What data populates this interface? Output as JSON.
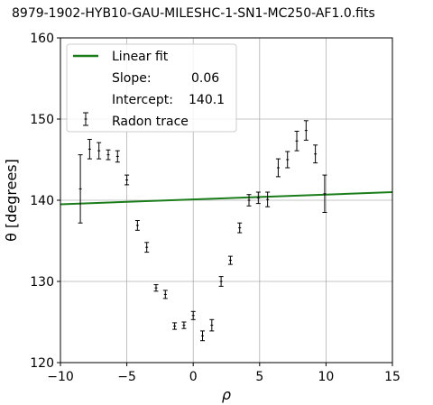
{
  "chart_data": {
    "type": "scatter",
    "title": "8979-1902-HYB10-GAU-MILESHC-1-SN1-MC250-AF1.0.fits",
    "xlabel": "ρ",
    "ylabel": "θ [degrees]",
    "xlim": [
      -10,
      15
    ],
    "ylim": [
      120,
      160
    ],
    "xticks": [
      -10,
      -5,
      0,
      5,
      10,
      15
    ],
    "yticks": [
      120,
      130,
      140,
      150,
      160
    ],
    "xtick_labels": [
      "−10",
      "−5",
      "0",
      "5",
      "10",
      "15"
    ],
    "ytick_labels": [
      "120",
      "130",
      "140",
      "150",
      "160"
    ],
    "grid": true,
    "legend_position": "top-left",
    "fit": {
      "name": "Linear fit",
      "slope": 0.06,
      "intercept": 140.1,
      "color": "#1a7d1a",
      "slope_label": "Slope:",
      "slope_text": "0.06",
      "intercept_label": "Intercept:",
      "intercept_text": "140.1"
    },
    "series": [
      {
        "name": "Radon trace",
        "color": "#000000",
        "x": [
          -8.5,
          -7.8,
          -7.1,
          -6.4,
          -5.7,
          -5.0,
          -4.2,
          -3.5,
          -2.8,
          -2.1,
          -1.4,
          -0.7,
          0.0,
          0.7,
          1.4,
          2.1,
          2.8,
          3.5,
          4.2,
          4.9,
          5.6,
          6.4,
          7.1,
          7.8,
          8.5,
          9.2,
          9.9
        ],
        "y": [
          141.4,
          146.3,
          146.1,
          145.6,
          145.4,
          142.5,
          136.9,
          134.2,
          129.2,
          128.4,
          124.5,
          124.6,
          125.8,
          123.3,
          124.6,
          130.0,
          132.6,
          136.6,
          140.0,
          140.3,
          140.1,
          144.0,
          145.0,
          147.3,
          148.6,
          145.7,
          140.8
        ],
        "yerr": [
          4.2,
          1.2,
          1.0,
          0.6,
          0.7,
          0.6,
          0.6,
          0.6,
          0.4,
          0.5,
          0.4,
          0.4,
          0.5,
          0.6,
          0.7,
          0.6,
          0.5,
          0.6,
          0.7,
          0.7,
          0.9,
          1.1,
          1.0,
          1.2,
          1.2,
          1.1,
          2.3
        ]
      }
    ]
  }
}
